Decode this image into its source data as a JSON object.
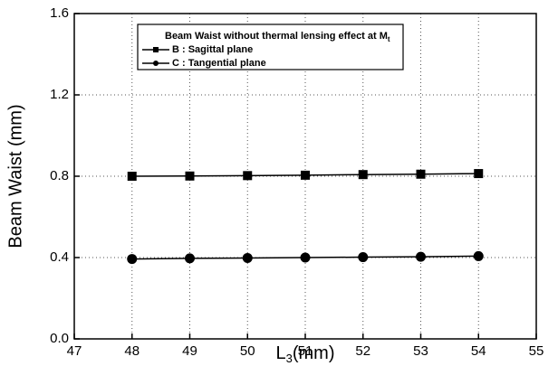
{
  "chart_data": {
    "type": "line",
    "legend_title": {
      "main": "Beam Waist without thermal lensing effect at M",
      "sub": "t"
    },
    "x_label": {
      "main": "L",
      "sub": "3",
      "rest": "(mm)"
    },
    "y_label": "Beam Waist (mm)",
    "x": [
      48,
      49,
      50,
      51,
      52,
      53,
      54
    ],
    "series": [
      {
        "name": "B : Sagittal plane",
        "color": "#000000",
        "marker": "square",
        "values": [
          0.8,
          0.801,
          0.803,
          0.805,
          0.808,
          0.81,
          0.813
        ]
      },
      {
        "name": "C : Tangential plane",
        "color": "#000000",
        "marker": "circle",
        "values": [
          0.393,
          0.396,
          0.398,
          0.4,
          0.402,
          0.404,
          0.407
        ]
      }
    ],
    "xlim": [
      47,
      55
    ],
    "xticks": [
      47,
      48,
      49,
      50,
      51,
      52,
      53,
      54,
      55
    ],
    "ylim": [
      0,
      1.6
    ],
    "yticks": [
      {
        "value": 0,
        "label": "0.0"
      },
      0.4,
      0.8,
      1.2,
      1.6
    ],
    "grid": true
  }
}
